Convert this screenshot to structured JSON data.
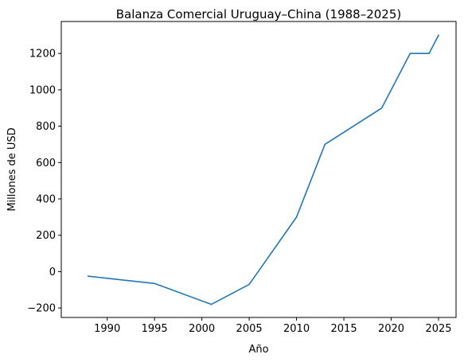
{
  "chart_data": {
    "type": "line",
    "title": "Balanza Comercial Uruguay–China (1988–2025)",
    "xlabel": "Año",
    "ylabel": "Millones de USD",
    "xlim": [
      1985.15,
      2026.85
    ],
    "ylim": [
      -252,
      1376
    ],
    "xticks": [
      1990,
      1995,
      2000,
      2005,
      2010,
      2015,
      2020,
      2025
    ],
    "yticks": [
      -200,
      0,
      200,
      400,
      600,
      800,
      1000,
      1200
    ],
    "grid": false,
    "series": [
      {
        "color": "#1f77b4",
        "x": [
          1988,
          1995,
          2001,
          2005,
          2010,
          2013,
          2019,
          2022,
          2024,
          2025
        ],
        "y": [
          -25,
          -65,
          -180,
          -70,
          300,
          700,
          900,
          1200,
          1200,
          1300
        ]
      }
    ]
  }
}
